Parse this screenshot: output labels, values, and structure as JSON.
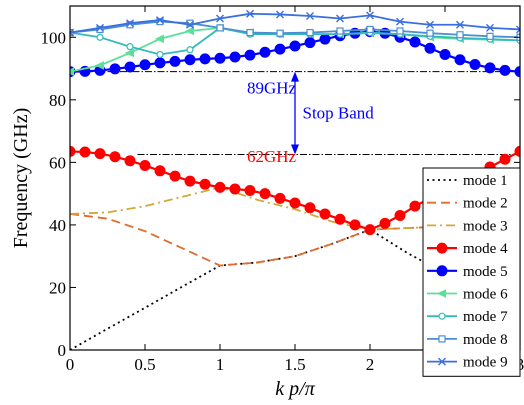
{
  "chart_data": {
    "type": "line",
    "xlabel": "k p/π",
    "ylabel": "Frequency (GHz)",
    "xlim": [
      0,
      3
    ],
    "ylim": [
      0,
      110
    ],
    "xticks": [
      0,
      0.5,
      1,
      1.5,
      2,
      2.5,
      3
    ],
    "yticks": [
      0,
      20,
      40,
      60,
      80,
      100
    ],
    "xtick_labels": [
      "0",
      "0.5",
      "1",
      "1.5",
      "2",
      "2.5",
      "3"
    ],
    "ytick_labels": [
      "0",
      "20",
      "40",
      "60",
      "80",
      "100"
    ],
    "grid": false,
    "legend_position": "lower-right",
    "reference_lines": [
      {
        "y": 89,
        "style": "dash-dot",
        "color": "#000000"
      },
      {
        "y": 62.5,
        "style": "dash-dot",
        "color": "#000000"
      }
    ],
    "annotations": [
      {
        "text": "89GHz",
        "color": "#0000ff",
        "x": 1.18,
        "y": 84
      },
      {
        "text": "Stop Band",
        "color": "#0000ff",
        "x": 1.55,
        "y": 76
      },
      {
        "text": "62GHz",
        "color": "#ff0000",
        "x": 1.18,
        "y": 62
      }
    ],
    "series": [
      {
        "name": "mode 1",
        "color": "#000000",
        "style": "dotted",
        "marker": "none",
        "points": [
          [
            0,
            0
          ],
          [
            0.25,
            6.8
          ],
          [
            0.5,
            13.5
          ],
          [
            0.75,
            20.3
          ],
          [
            1,
            27
          ],
          [
            1.25,
            28
          ],
          [
            1.5,
            30
          ],
          [
            1.75,
            34
          ],
          [
            2,
            38.5
          ],
          [
            2.25,
            31
          ],
          [
            2.5,
            24.5
          ],
          [
            2.75,
            18
          ],
          [
            3,
            12
          ]
        ]
      },
      {
        "name": "mode 2",
        "color": "#e06c2e",
        "style": "dashed",
        "marker": "none",
        "points": [
          [
            0,
            43.5
          ],
          [
            0.25,
            42
          ],
          [
            0.5,
            38
          ],
          [
            0.75,
            32.5
          ],
          [
            1,
            27
          ],
          [
            1.25,
            28
          ],
          [
            1.5,
            30
          ],
          [
            1.75,
            34
          ],
          [
            2,
            38.5
          ],
          [
            2.25,
            39
          ],
          [
            2.5,
            39.5
          ],
          [
            2.75,
            40
          ],
          [
            3,
            40
          ]
        ]
      },
      {
        "name": "mode 3",
        "color": "#d4a73c",
        "style": "dashdot",
        "marker": "none",
        "points": [
          [
            0,
            43.5
          ],
          [
            0.25,
            44
          ],
          [
            0.5,
            46
          ],
          [
            0.75,
            49
          ],
          [
            1,
            52
          ],
          [
            1.25,
            48
          ],
          [
            1.5,
            45
          ],
          [
            1.75,
            41
          ],
          [
            2,
            38.5
          ],
          [
            2.25,
            39
          ],
          [
            2.5,
            39.5
          ],
          [
            2.75,
            40
          ],
          [
            3,
            40
          ]
        ]
      },
      {
        "name": "mode 4",
        "color": "#ff0000",
        "style": "solid",
        "marker": "circle",
        "points": [
          [
            0,
            63.5
          ],
          [
            0.1,
            63.3
          ],
          [
            0.2,
            62.8
          ],
          [
            0.3,
            61.8
          ],
          [
            0.4,
            60.5
          ],
          [
            0.5,
            59
          ],
          [
            0.6,
            57.3
          ],
          [
            0.7,
            55.6
          ],
          [
            0.8,
            54
          ],
          [
            0.9,
            53
          ],
          [
            1,
            52
          ],
          [
            1.1,
            51.5
          ],
          [
            1.2,
            51
          ],
          [
            1.3,
            50
          ],
          [
            1.4,
            48.5
          ],
          [
            1.5,
            47
          ],
          [
            1.6,
            45.5
          ],
          [
            1.7,
            43.5
          ],
          [
            1.8,
            41.8
          ],
          [
            1.9,
            40
          ],
          [
            2,
            38.5
          ],
          [
            2.1,
            40.5
          ],
          [
            2.2,
            43
          ],
          [
            2.3,
            46
          ],
          [
            2.4,
            48.5
          ],
          [
            2.5,
            51
          ],
          [
            2.6,
            53.5
          ],
          [
            2.7,
            56
          ],
          [
            2.8,
            58.5
          ],
          [
            2.9,
            61
          ],
          [
            3,
            63.5
          ]
        ]
      },
      {
        "name": "mode 5",
        "color": "#0000ff",
        "style": "solid",
        "marker": "circle",
        "points": [
          [
            0,
            89
          ],
          [
            0.1,
            89.1
          ],
          [
            0.2,
            89.4
          ],
          [
            0.3,
            89.9
          ],
          [
            0.4,
            90.5
          ],
          [
            0.5,
            91.2
          ],
          [
            0.6,
            91.8
          ],
          [
            0.7,
            92.3
          ],
          [
            0.8,
            92.8
          ],
          [
            0.9,
            93.1
          ],
          [
            1,
            93.3
          ],
          [
            1.1,
            93.7
          ],
          [
            1.2,
            94.3
          ],
          [
            1.3,
            95.2
          ],
          [
            1.4,
            96.2
          ],
          [
            1.5,
            97.2
          ],
          [
            1.6,
            98.3
          ],
          [
            1.7,
            99.4
          ],
          [
            1.8,
            100.5
          ],
          [
            1.9,
            101.3
          ],
          [
            2,
            101.8
          ],
          [
            2.1,
            101.3
          ],
          [
            2.2,
            100
          ],
          [
            2.3,
            98.5
          ],
          [
            2.4,
            96.5
          ],
          [
            2.5,
            94.5
          ],
          [
            2.6,
            92.8
          ],
          [
            2.7,
            91.3
          ],
          [
            2.8,
            90.2
          ],
          [
            2.9,
            89.4
          ],
          [
            3,
            89
          ]
        ]
      },
      {
        "name": "mode 6",
        "color": "#5be09a",
        "style": "solid",
        "marker": "triangle",
        "points": [
          [
            0,
            89
          ],
          [
            0.2,
            91
          ],
          [
            0.4,
            95
          ],
          [
            0.6,
            99.5
          ],
          [
            0.8,
            102
          ],
          [
            1,
            103
          ],
          [
            1.2,
            101.5
          ],
          [
            1.4,
            101
          ],
          [
            1.6,
            101
          ],
          [
            1.8,
            101
          ],
          [
            2,
            101.3
          ],
          [
            2.2,
            101
          ],
          [
            2.4,
            100
          ],
          [
            2.6,
            99.5
          ],
          [
            2.8,
            99.2
          ],
          [
            3,
            99
          ]
        ]
      },
      {
        "name": "mode 7",
        "color": "#33bbbb",
        "style": "solid",
        "marker": "circle-open",
        "points": [
          [
            0,
            101.5
          ],
          [
            0.2,
            100
          ],
          [
            0.4,
            97
          ],
          [
            0.6,
            94.5
          ],
          [
            0.8,
            96
          ],
          [
            1,
            103
          ],
          [
            1.2,
            101
          ],
          [
            1.4,
            101
          ],
          [
            1.6,
            101
          ],
          [
            1.8,
            101
          ],
          [
            2,
            101.5
          ],
          [
            2.2,
            101
          ],
          [
            2.4,
            100.3
          ],
          [
            2.6,
            99.8
          ],
          [
            2.8,
            99.4
          ],
          [
            3,
            99
          ]
        ]
      },
      {
        "name": "mode 8",
        "color": "#4b8fd0",
        "style": "solid",
        "marker": "square-open",
        "points": [
          [
            0,
            101.5
          ],
          [
            0.2,
            102.5
          ],
          [
            0.4,
            104
          ],
          [
            0.6,
            105
          ],
          [
            0.8,
            104.5
          ],
          [
            1,
            103
          ],
          [
            1.2,
            101.5
          ],
          [
            1.4,
            101.3
          ],
          [
            1.6,
            101.5
          ],
          [
            1.8,
            102
          ],
          [
            2,
            102.5
          ],
          [
            2.2,
            102
          ],
          [
            2.4,
            101.3
          ],
          [
            2.6,
            100.8
          ],
          [
            2.8,
            100.3
          ],
          [
            3,
            100
          ]
        ]
      },
      {
        "name": "mode 9",
        "color": "#3a6fdf",
        "style": "solid",
        "marker": "x",
        "points": [
          [
            0,
            101.5
          ],
          [
            0.2,
            103
          ],
          [
            0.4,
            104.5
          ],
          [
            0.6,
            105.5
          ],
          [
            0.8,
            104
          ],
          [
            1,
            106
          ],
          [
            1.2,
            107.5
          ],
          [
            1.4,
            107.3
          ],
          [
            1.6,
            106.8
          ],
          [
            1.8,
            106
          ],
          [
            2,
            107
          ],
          [
            2.2,
            105
          ],
          [
            2.4,
            104
          ],
          [
            2.6,
            104
          ],
          [
            2.8,
            103
          ],
          [
            3,
            102.5
          ]
        ]
      }
    ]
  }
}
